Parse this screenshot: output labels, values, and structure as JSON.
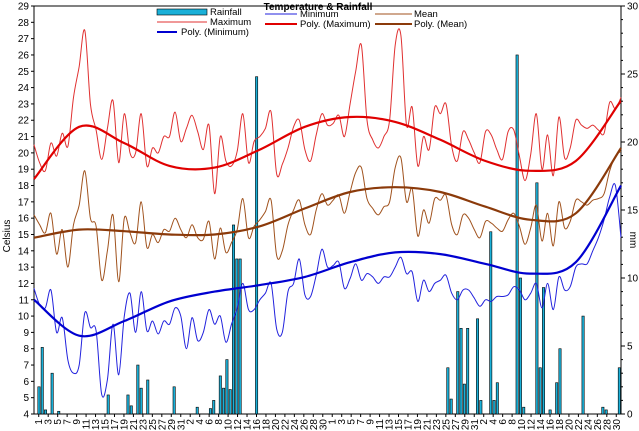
{
  "chart_data": {
    "type": "bar+line",
    "title": "Temperature & Rainfall",
    "ylabel_left": "Celsius",
    "ylabel_right": "mm",
    "ylim_left": [
      4,
      29
    ],
    "ylim_right": [
      0,
      30
    ],
    "x_tick_labels": [
      "1",
      "3",
      "5",
      "7",
      "9",
      "11",
      "13",
      "15",
      "17",
      "19",
      "21",
      "23",
      "25",
      "27",
      "29",
      "31",
      "2",
      "4",
      "6",
      "8",
      "10",
      "12",
      "14",
      "16",
      "18",
      "20",
      "22",
      "24",
      "26",
      "28",
      "30",
      "1",
      "3",
      "5",
      "7",
      "9",
      "11",
      "13",
      "15",
      "17",
      "19",
      "21",
      "23",
      "25",
      "27",
      "29",
      "31",
      "2",
      "4",
      "6",
      "8",
      "10",
      "12",
      "14",
      "16",
      "18",
      "20",
      "22",
      "24",
      "26",
      "28",
      "30"
    ],
    "legend": [
      {
        "label": "Rainfall",
        "kind": "bar",
        "color": "#1ab0d8"
      },
      {
        "label": "Minimum",
        "kind": "line",
        "color": "#2222dd"
      },
      {
        "label": "Mean",
        "kind": "line",
        "color": "#a0521d"
      },
      {
        "label": "Maximum",
        "kind": "line",
        "color": "#e03030"
      },
      {
        "label": "Poly. (Maximum)",
        "kind": "line",
        "color": "#e00000",
        "bold": true
      },
      {
        "label": "Poly. (Mean)",
        "kind": "line",
        "color": "#8b3a0a",
        "bold": true
      },
      {
        "label": "Poly. (Minimum)",
        "kind": "line",
        "color": "#0000d0",
        "bold": true
      }
    ],
    "series": {
      "rainfall_mm": [
        0,
        2.0,
        4.9,
        0.3,
        0,
        3.0,
        0,
        0.2,
        0,
        0,
        0,
        0,
        0,
        0,
        0,
        0,
        0,
        0,
        0,
        0,
        0,
        0,
        1.4,
        0,
        0,
        0,
        0,
        0,
        1.4,
        0.6,
        0,
        3.6,
        1.9,
        0,
        2.5,
        0,
        0,
        0,
        0,
        0,
        0,
        0,
        2.0,
        0,
        0,
        0,
        0,
        0,
        0,
        0.5,
        0,
        0,
        0,
        0.4,
        1.0,
        0,
        2.8,
        1.9,
        4.0,
        1.8,
        13.9,
        11.4,
        11.4,
        0,
        0,
        0,
        0,
        24.8,
        0,
        0,
        0,
        0,
        0,
        0,
        0,
        0,
        0,
        0,
        0,
        0,
        0,
        0,
        0,
        0,
        0,
        0,
        0,
        0,
        0,
        0,
        0,
        0,
        0,
        0,
        0,
        0,
        0,
        0,
        0,
        0,
        0,
        0,
        0,
        0,
        0,
        0,
        0,
        0,
        0,
        0,
        0,
        0,
        0,
        0,
        0,
        0,
        0,
        0,
        0,
        0,
        0,
        0,
        0,
        0,
        0,
        3.4,
        1.1,
        0,
        9.0,
        6.3,
        2.2,
        6.3,
        0,
        0,
        7.0,
        1.0,
        0,
        0,
        13.4,
        1.0,
        2.3,
        0,
        0,
        0,
        0,
        0,
        26.4,
        10.0,
        0.5,
        0,
        0,
        0,
        17.0,
        3.4,
        9.3,
        0,
        0.3,
        0,
        2.3,
        4.8,
        0,
        0,
        0,
        0,
        0,
        0,
        7.2,
        0,
        0,
        0,
        0,
        0,
        0.5,
        0.3,
        0,
        0,
        0,
        3.4
      ],
      "poly_max_c": [
        18.4,
        21.6,
        20.6,
        19.2,
        19.1,
        20.2,
        21.6,
        22.2,
        21.9,
        20.8,
        19.5,
        18.9,
        19.5,
        23.2
      ],
      "poly_mean_c": [
        14.8,
        15.3,
        15.2,
        15.0,
        15.0,
        15.5,
        16.6,
        17.6,
        17.9,
        17.6,
        16.7,
        15.9,
        16.3,
        20.3
      ],
      "poly_min_c": [
        11.0,
        8.8,
        9.7,
        10.9,
        11.5,
        11.9,
        12.4,
        13.3,
        13.9,
        13.8,
        13.2,
        12.6,
        13.3,
        18.0
      ],
      "maximum_c": [
        20.5,
        19.4,
        18.9,
        20.6,
        19.8,
        21.2,
        20.4,
        23.4,
        25.3,
        27.5,
        23.0,
        21.4,
        19.6,
        21.5,
        23.2,
        19.4,
        22.4,
        20.0,
        20.0,
        22.4,
        19.2,
        20.3,
        20.0,
        21.0,
        21.0,
        22.5,
        20.7,
        21.5,
        22.3,
        21.3,
        20.2,
        21.7,
        17.5,
        21.0,
        19.5,
        19.2,
        20.1,
        22.4,
        19.4,
        20.7,
        21.0,
        21.5,
        22.5,
        18.7,
        19.3,
        20.3,
        21.6,
        22.0,
        20.2,
        19.5,
        21.1,
        22.4,
        21.7,
        21.8,
        22.3,
        21.0,
        23.0,
        25.0,
        26.6,
        22.0,
        20.8,
        20.3,
        21.0,
        22.0,
        26.6,
        27.2,
        21.7,
        22.8,
        19.2,
        21.0,
        20.2,
        22.8,
        22.4,
        23.0,
        20.4,
        19.5,
        21.3,
        20.8,
        20.0,
        19.4,
        21.3,
        21.1,
        20.2,
        19.6,
        21.3,
        21.4,
        19.8,
        18.3,
        19.9,
        22.4,
        19.0,
        21.1,
        18.6,
        22.2,
        19.7,
        20.3,
        22.0,
        21.7,
        21.5,
        21.7,
        21.4,
        21.2,
        23.1,
        22.7,
        23.4
      ],
      "mean_c": [
        16.2,
        15.6,
        15.1,
        16.3,
        13.8,
        15.3,
        13.0,
        15.6,
        16.8,
        18.9,
        16.0,
        15.5,
        12.2,
        14.0,
        16.2,
        12.1,
        16.0,
        15.1,
        14.5,
        17.0,
        14.2,
        15.0,
        14.5,
        15.3,
        15.2,
        16.0,
        15.3,
        14.8,
        15.6,
        14.8,
        14.7,
        15.8,
        13.5,
        15.4,
        13.9,
        14.5,
        15.3,
        17.2,
        14.8,
        15.5,
        15.9,
        16.4,
        17.1,
        13.7,
        14.0,
        15.6,
        16.5,
        17.1,
        15.6,
        15.0,
        16.5,
        17.5,
        16.8,
        17.1,
        17.4,
        16.3,
        17.6,
        18.8,
        19.1,
        17.2,
        16.6,
        16.2,
        16.7,
        17.0,
        19.1,
        19.7,
        17.0,
        17.8,
        14.9,
        16.5,
        15.7,
        17.2,
        17.1,
        17.4,
        15.6,
        15.0,
        16.2,
        16.0,
        15.3,
        14.8,
        15.8,
        15.7,
        15.4,
        15.2,
        15.9,
        16.3,
        15.5,
        14.4,
        15.4,
        16.8,
        14.6,
        16.3,
        14.3,
        17.0,
        15.4,
        15.8,
        17.1,
        17.0,
        16.8,
        17.1,
        17.2,
        17.5,
        18.9,
        19.8,
        20.1
      ],
      "minimum_c": [
        11.7,
        10.7,
        10.5,
        11.6,
        9.0,
        9.9,
        7.3,
        6.5,
        7.0,
        10.2,
        9.3,
        9.1,
        5.2,
        6.1,
        9.5,
        6.4,
        10.0,
        11.4,
        9.0,
        11.5,
        9.1,
        9.7,
        8.9,
        9.7,
        9.5,
        10.5,
        10.0,
        8.0,
        9.9,
        8.5,
        9.0,
        10.4,
        9.5,
        10.0,
        8.4,
        9.5,
        10.5,
        12.0,
        10.4,
        10.4,
        11.0,
        11.4,
        12.0,
        9.2,
        9.0,
        11.5,
        12.0,
        13.5,
        11.3,
        11.2,
        12.5,
        14.1,
        13.0,
        13.1,
        13.3,
        11.7,
        12.3,
        13.2,
        12.2,
        12.6,
        12.4,
        12.0,
        12.4,
        12.4,
        13.0,
        13.6,
        12.6,
        12.7,
        10.9,
        12.2,
        11.5,
        12.0,
        12.2,
        12.5,
        11.4,
        11.0,
        11.6,
        11.6,
        11.1,
        10.6,
        11.0,
        10.9,
        11.2,
        11.2,
        11.3,
        11.8,
        11.6,
        11.0,
        11.4,
        12.0,
        10.5,
        12.0,
        10.4,
        12.4,
        11.6,
        11.8,
        13.0,
        13.2,
        13.2,
        14.0,
        14.8,
        15.9,
        17.3,
        18.0,
        14.8
      ]
    }
  }
}
